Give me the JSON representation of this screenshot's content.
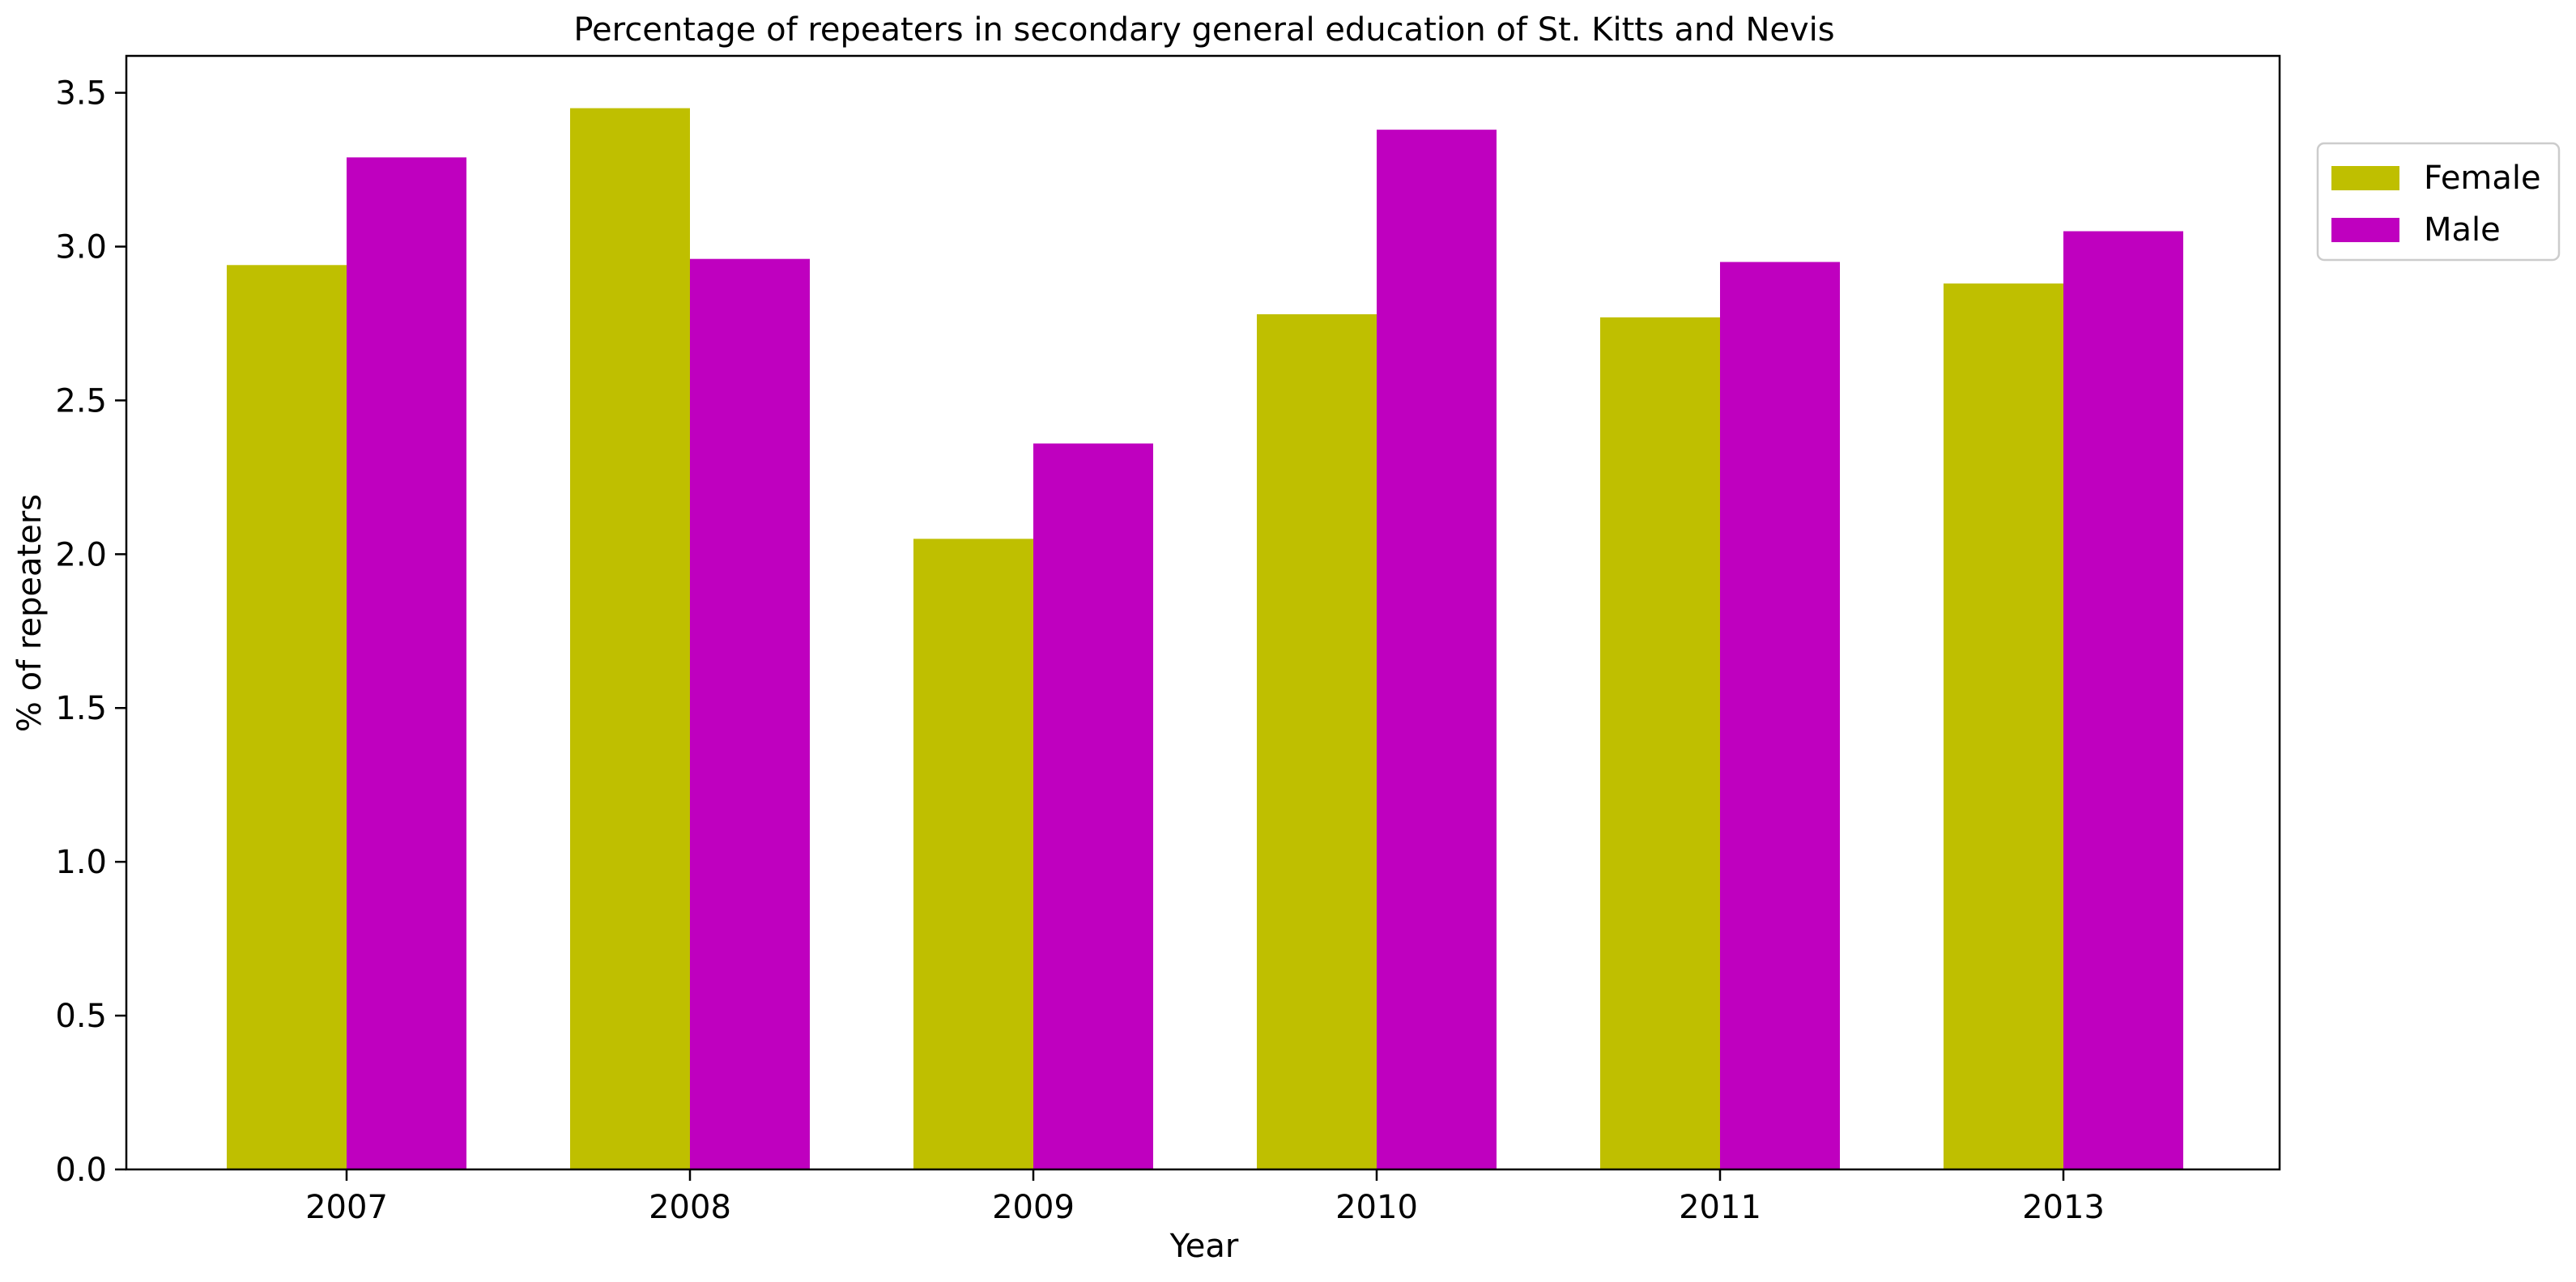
{
  "chart_data": {
    "type": "bar",
    "title": "Percentage of repeaters in secondary general education of St. Kitts and Nevis",
    "xlabel": "Year",
    "ylabel": "% of repeaters",
    "categories": [
      "2007",
      "2008",
      "2009",
      "2010",
      "2011",
      "2013"
    ],
    "series": [
      {
        "name": "Female",
        "color": "#bfbf00",
        "values": [
          2.94,
          3.45,
          2.05,
          2.78,
          2.77,
          2.88
        ]
      },
      {
        "name": "Male",
        "color": "#bf00bf",
        "values": [
          3.29,
          2.96,
          2.36,
          3.38,
          2.95,
          3.05
        ]
      }
    ],
    "ylim": [
      0,
      3.62
    ],
    "yticks": [
      "0.0",
      "0.5",
      "1.0",
      "1.5",
      "2.0",
      "2.5",
      "3.0",
      "3.5"
    ],
    "grid": false,
    "legend_position": "outside-top-right"
  }
}
